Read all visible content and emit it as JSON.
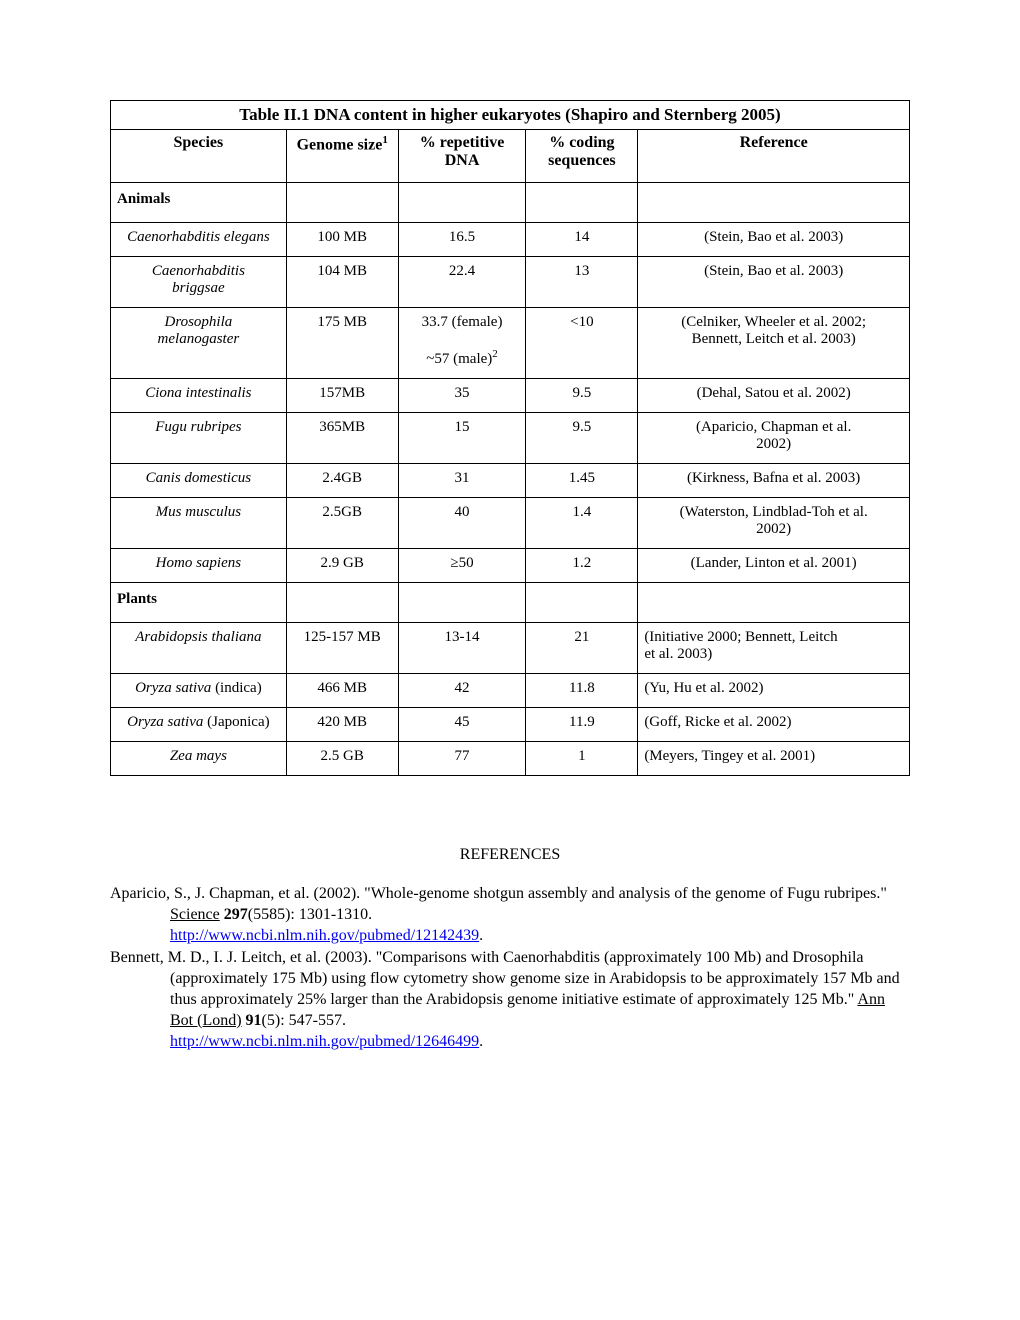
{
  "table": {
    "title": "Table II.1 DNA content in higher eukaryotes (Shapiro and Sternberg 2005)",
    "headers": {
      "species": "Species",
      "genome_pre": "Genome size",
      "genome_sup": "1",
      "repetitive_l1": "% repetitive",
      "repetitive_l2": "DNA",
      "coding_l1": "% coding",
      "coding_l2": "sequences",
      "reference": "Reference"
    },
    "sections": {
      "animals": "Animals",
      "plants": "Plants"
    },
    "rows": {
      "r1": {
        "species": "Caenorhabditis elegans",
        "genome": "100 MB",
        "rep": "16.5",
        "coding": "14",
        "ref": "(Stein, Bao et al. 2003)"
      },
      "r2": {
        "species_l1": "Caenorhabditis",
        "species_l2": "briggsae",
        "genome": "104 MB",
        "rep": "22.4",
        "coding": "13",
        "ref": "(Stein, Bao et al. 2003)"
      },
      "r3": {
        "species_l1": "Drosophila",
        "species_l2": "melanogaster",
        "genome": "175 MB",
        "rep_l1": "33.7 (female)",
        "rep_l2_pre": "~57 (male)",
        "rep_l2_sup": "2",
        "coding": "<10",
        "ref_l1": "(Celniker, Wheeler et al. 2002;",
        "ref_l2": "Bennett, Leitch et al. 2003)"
      },
      "r4": {
        "species": "Ciona intestinalis",
        "genome": "157MB",
        "rep": "35",
        "coding": "9.5",
        "ref": "(Dehal, Satou et al. 2002)"
      },
      "r5": {
        "species": "Fugu rubripes",
        "genome": "365MB",
        "rep": "15",
        "coding": "9.5",
        "ref_l1": "(Aparicio, Chapman et al.",
        "ref_l2": "2002)"
      },
      "r6": {
        "species": "Canis domesticus",
        "genome": "2.4GB",
        "rep": "31",
        "coding": "1.45",
        "ref": "(Kirkness, Bafna et al. 2003)"
      },
      "r7": {
        "species": "Mus musculus",
        "genome": "2.5GB",
        "rep": "40",
        "coding": "1.4",
        "ref_l1": "(Waterston, Lindblad-Toh et al.",
        "ref_l2": "2002)"
      },
      "r8": {
        "species": "Homo sapiens",
        "genome": "2.9 GB",
        "rep": "≥50",
        "coding": "1.2",
        "ref": "(Lander, Linton et al. 2001)"
      },
      "r9": {
        "species": "Arabidopsis thaliana",
        "genome": "125-157 MB",
        "rep": "13-14",
        "coding": "21",
        "ref_l1": "(Initiative 2000; Bennett, Leitch",
        "ref_l2": "et al. 2003)",
        "ref_align": "left"
      },
      "r10": {
        "species_pre": "Oryza sativa",
        "species_suf": " (indica)",
        "genome": "466 MB",
        "rep": "42",
        "coding": "11.8",
        "ref": "(Yu, Hu et al. 2002)",
        "ref_align": "left"
      },
      "r11": {
        "species_pre": "Oryza sativa",
        "species_suf": " (Japonica)",
        "genome": "420 MB",
        "rep": "45",
        "coding": "11.9",
        "ref": "(Goff, Ricke et al. 2002)",
        "ref_align": "left"
      },
      "r12": {
        "species": "Zea mays",
        "genome": "2.5 GB",
        "rep": "77",
        "coding": "1",
        "ref": "(Meyers, Tingey et al. 2001)",
        "ref_align": "left"
      }
    }
  },
  "references": {
    "heading": "REFERENCES",
    "entries": {
      "e1": {
        "authors": "Aparicio, S., J. Chapman, et al. (2002). \"Whole-genome shotgun assembly and analysis of the genome of Fugu rubripes.\" ",
        "journal": "Science",
        "citation": " ",
        "volume": "297",
        "issue": "(5585): 1301-1310.",
        "url": "http://www.ncbi.nlm.nih.gov/pubmed/12142439"
      },
      "e2": {
        "authors": "Bennett, M. D., I. J. Leitch, et al. (2003). \"Comparisons with Caenorhabditis (approximately 100 Mb) and Drosophila (approximately 175 Mb) using flow cytometry show genome size in Arabidopsis to be approximately 157 Mb and thus approximately 25% larger than the Arabidopsis genome initiative estimate of approximately 125 Mb.\" ",
        "journal": "Ann Bot (Lond)",
        "citation": " ",
        "volume": "91",
        "issue": "(5): 547-557.",
        "url": "http://www.ncbi.nlm.nih.gov/pubmed/12646499"
      }
    }
  }
}
